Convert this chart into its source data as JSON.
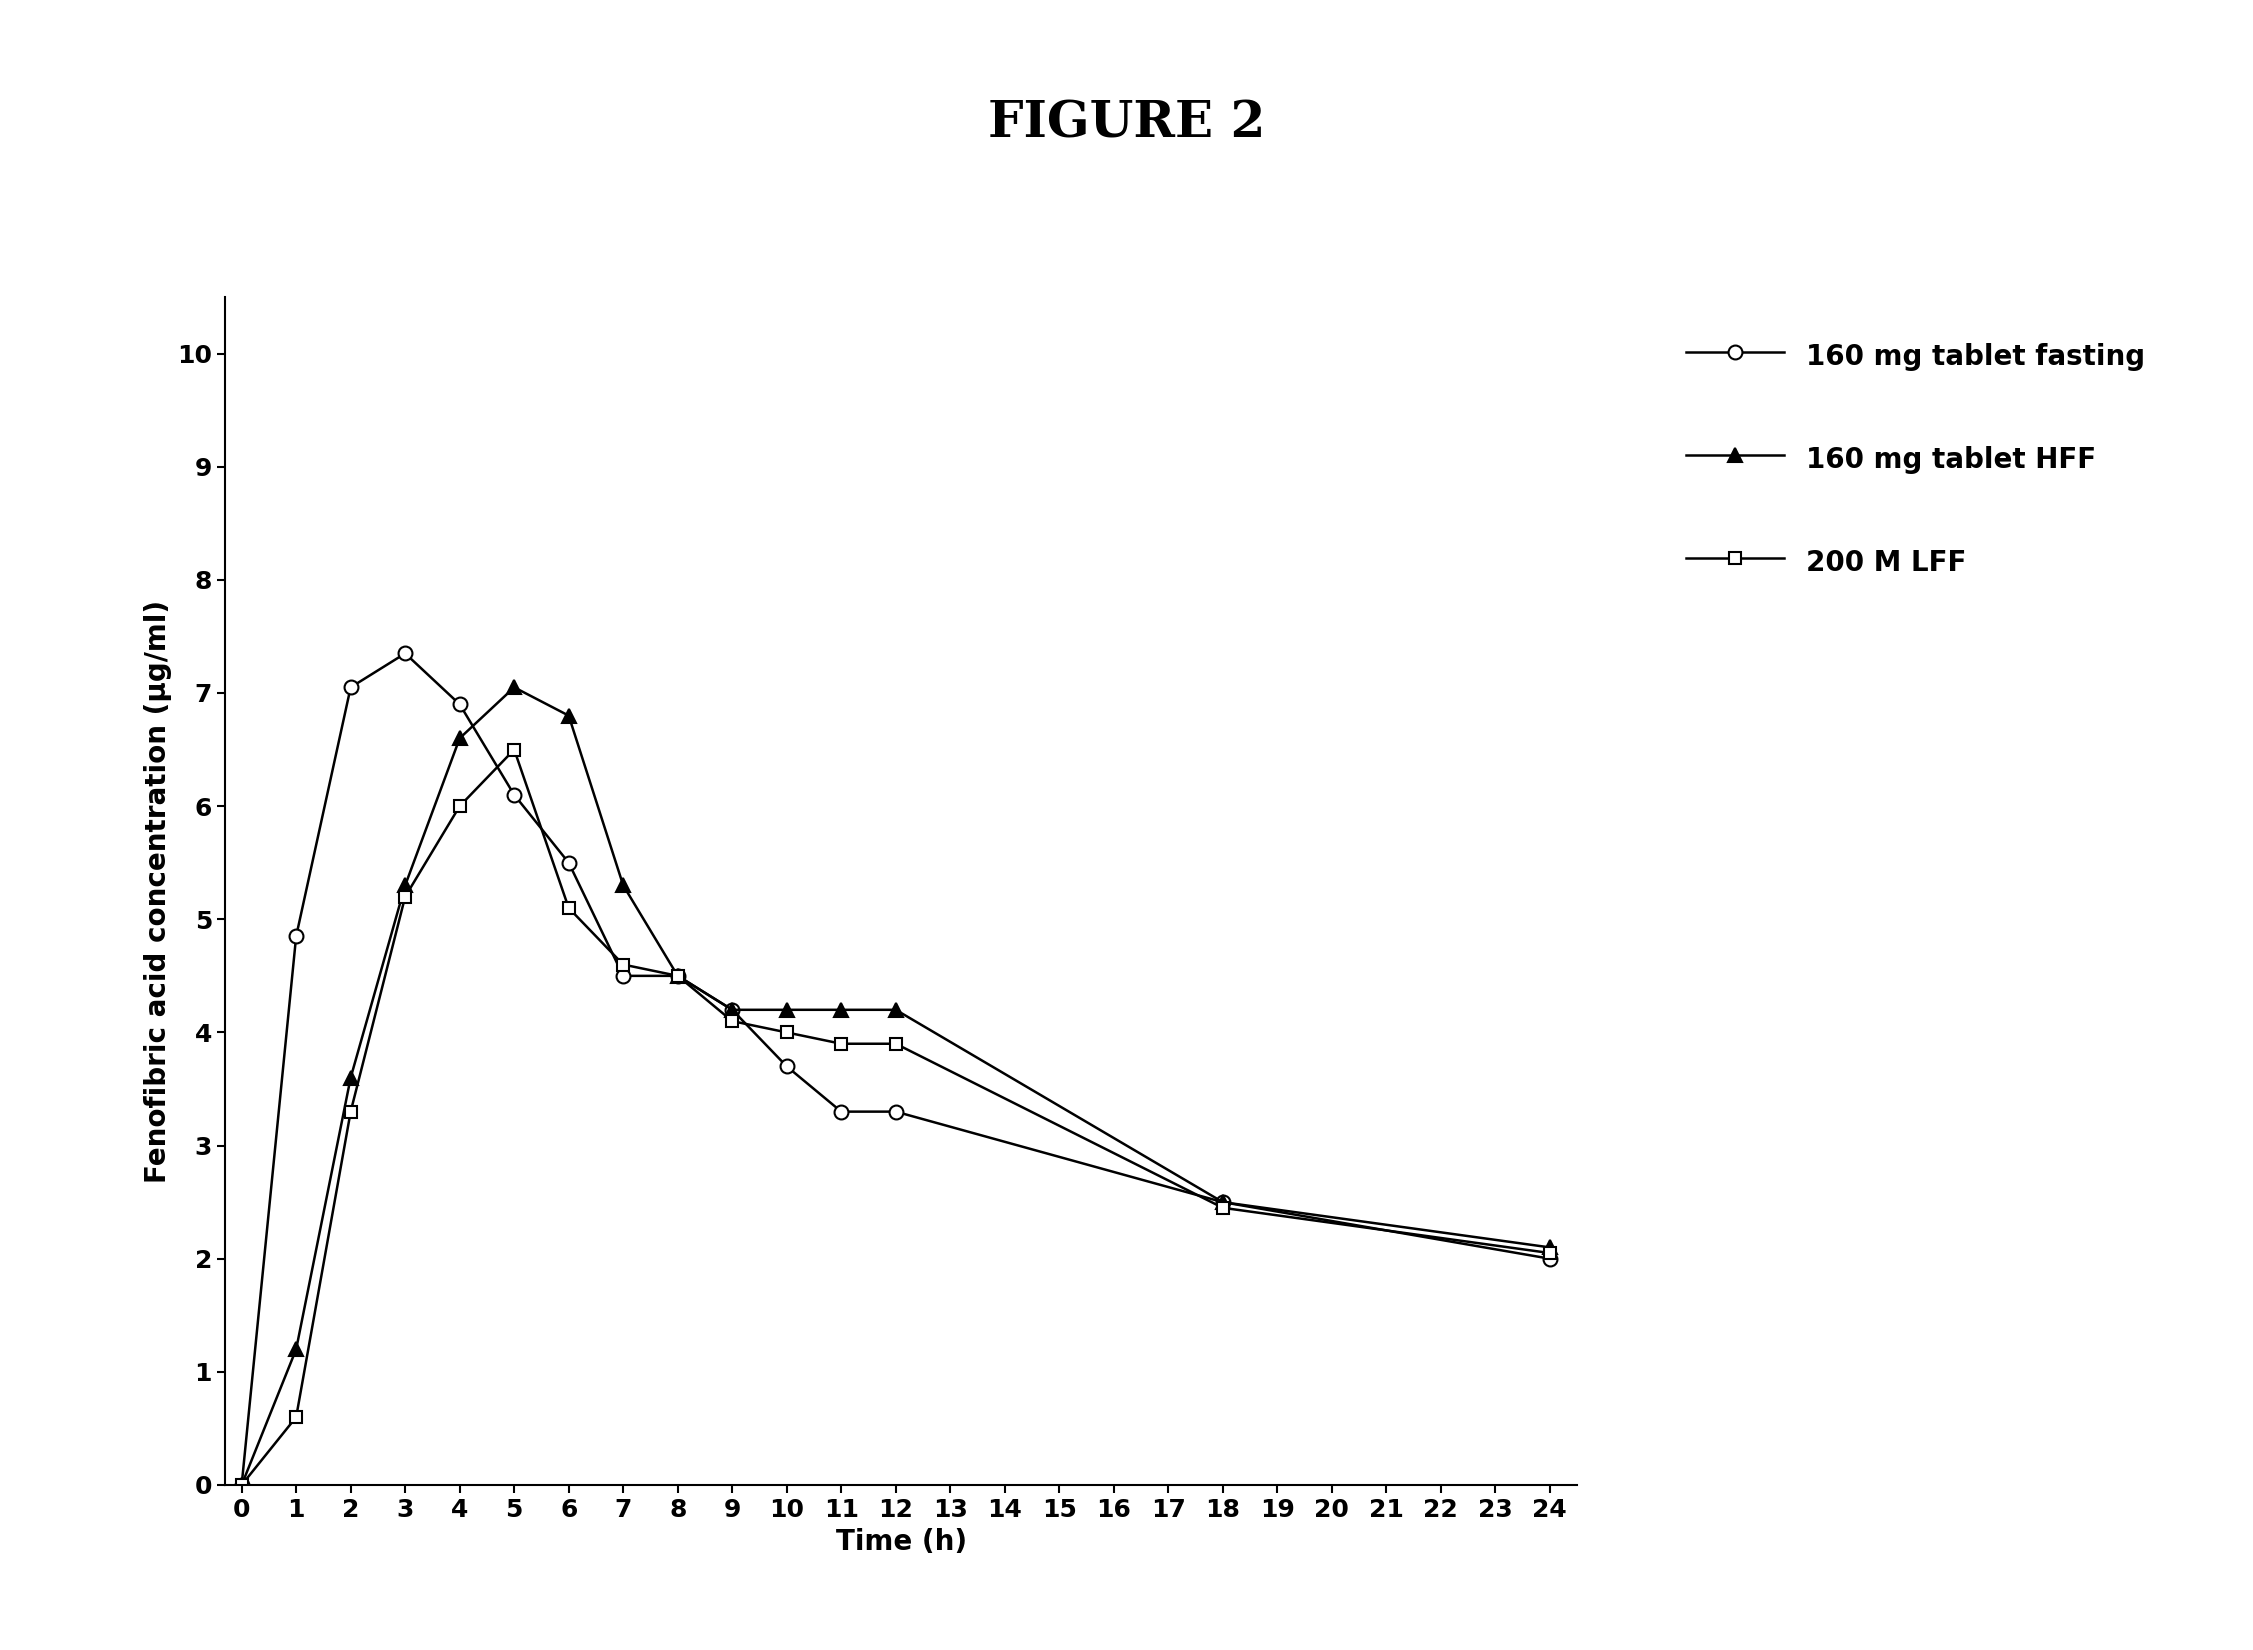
{
  "title": "FIGURE 2",
  "xlabel": "Time (h)",
  "ylabel": "Fenofibric acid concentration (μg/ml)",
  "series": [
    {
      "label": "160 mg tablet fasting",
      "marker": "o",
      "marker_fill": "white",
      "color": "black",
      "linewidth": 1.8,
      "markersize": 10,
      "x": [
        0,
        1,
        2,
        3,
        4,
        5,
        6,
        7,
        8,
        9,
        10,
        11,
        12,
        18,
        24
      ],
      "y": [
        0,
        4.85,
        7.05,
        7.35,
        6.9,
        6.1,
        5.5,
        4.5,
        4.5,
        4.2,
        3.7,
        3.3,
        3.3,
        2.5,
        2.0
      ]
    },
    {
      "label": "160 mg tablet HFF",
      "marker": "^",
      "marker_fill": "black",
      "color": "black",
      "linewidth": 1.8,
      "markersize": 10,
      "x": [
        0,
        1,
        2,
        3,
        4,
        5,
        6,
        7,
        8,
        9,
        10,
        11,
        12,
        18,
        24
      ],
      "y": [
        0,
        1.2,
        3.6,
        5.3,
        6.6,
        7.05,
        6.8,
        5.3,
        4.5,
        4.2,
        4.2,
        4.2,
        4.2,
        2.5,
        2.1
      ]
    },
    {
      "label": "200 M LFF",
      "marker": "s",
      "marker_fill": "white",
      "color": "black",
      "linewidth": 1.8,
      "markersize": 9,
      "x": [
        0,
        1,
        2,
        3,
        4,
        5,
        6,
        7,
        8,
        9,
        10,
        11,
        12,
        18,
        24
      ],
      "y": [
        0,
        0.6,
        3.3,
        5.2,
        6.0,
        6.5,
        5.1,
        4.6,
        4.5,
        4.1,
        4.0,
        3.9,
        3.9,
        2.45,
        2.05
      ]
    }
  ],
  "xticks": [
    0,
    1,
    2,
    3,
    4,
    5,
    6,
    7,
    8,
    9,
    10,
    11,
    12,
    13,
    14,
    15,
    16,
    17,
    18,
    19,
    20,
    21,
    22,
    23,
    24
  ],
  "yticks": [
    0,
    1,
    2,
    3,
    4,
    5,
    6,
    7,
    8,
    9,
    10
  ],
  "xlim": [
    -0.3,
    24.5
  ],
  "ylim": [
    0,
    10.5
  ],
  "title_fontsize": 36,
  "axis_label_fontsize": 20,
  "tick_fontsize": 18,
  "legend_fontsize": 20,
  "background_color": "#ffffff"
}
